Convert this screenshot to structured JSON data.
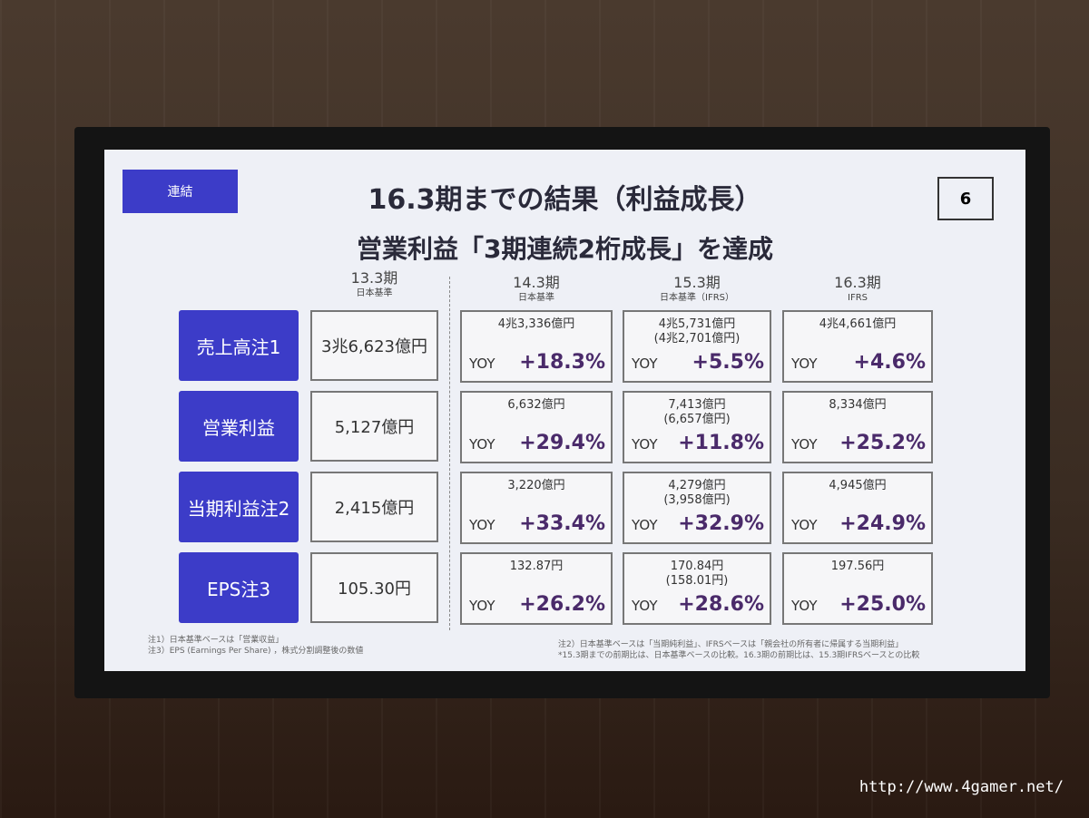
{
  "slide": {
    "tag": "連結",
    "title": "16.3期までの結果（利益成長）",
    "subtitle": "営業利益「3期連続2桁成長」を達成",
    "page": "6",
    "columns": [
      {
        "period": "13.3期",
        "basis": "日本基準"
      },
      {
        "period": "14.3期",
        "basis": "日本基準"
      },
      {
        "period": "15.3期",
        "basis": "日本基準（IFRS）"
      },
      {
        "period": "16.3期",
        "basis": "IFRS"
      }
    ],
    "yoy_label": "YOY",
    "rows": [
      {
        "label": "売上高注1",
        "base": "3兆6,623億円",
        "cells": [
          {
            "value": "4兆3,336億円",
            "yoy": "+18.3%"
          },
          {
            "value": "4兆5,731億円\n(4兆2,701億円)",
            "yoy": "+5.5%"
          },
          {
            "value": "4兆4,661億円",
            "yoy": "+4.6%"
          }
        ]
      },
      {
        "label": "営業利益",
        "base": "5,127億円",
        "cells": [
          {
            "value": "6,632億円",
            "yoy": "+29.4%"
          },
          {
            "value": "7,413億円\n(6,657億円)",
            "yoy": "+11.8%"
          },
          {
            "value": "8,334億円",
            "yoy": "+25.2%"
          }
        ]
      },
      {
        "label": "当期利益注2",
        "base": "2,415億円",
        "cells": [
          {
            "value": "3,220億円",
            "yoy": "+33.4%"
          },
          {
            "value": "4,279億円\n(3,958億円)",
            "yoy": "+32.9%"
          },
          {
            "value": "4,945億円",
            "yoy": "+24.9%"
          }
        ]
      },
      {
        "label": "EPS注3",
        "base": "105.30円",
        "cells": [
          {
            "value": "132.87円",
            "yoy": "+26.2%"
          },
          {
            "value": "170.84円\n(158.01円)",
            "yoy": "+28.6%"
          },
          {
            "value": "197.56円",
            "yoy": "+25.0%"
          }
        ]
      }
    ],
    "notes_left": [
      "注1）日本基準ベースは「営業収益」",
      "注3）EPS (Earnings Per Share) ，株式分割調整後の数値"
    ],
    "notes_right": [
      "注2）日本基準ベースは「当期純利益」、IFRSベースは「親会社の所有者に帰属する当期利益」",
      "*15.3期までの前期比は、日本基準ベースの比較。16.3期の前期比は、15.3期IFRSベースとの比較"
    ]
  },
  "watermark": "http://www.4gamer.net/"
}
